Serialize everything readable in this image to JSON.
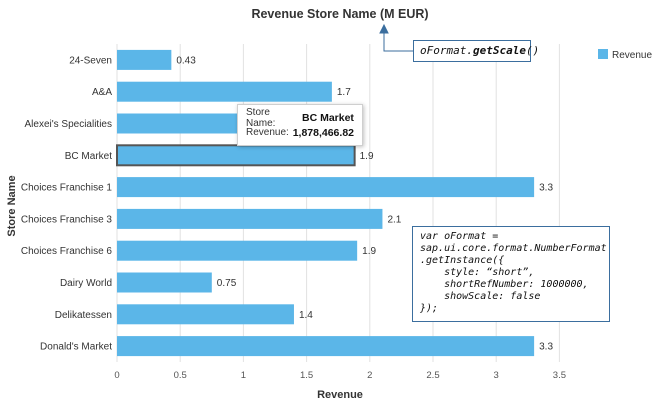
{
  "chart_data": {
    "type": "bar",
    "orientation": "horizontal",
    "title": "Revenue Store Name (M EUR)",
    "xlabel": "Revenue",
    "ylabel": "Store Name",
    "categories": [
      "24-Seven",
      "A&A",
      "Alexei's Specialities",
      "BC Market",
      "Choices Franchise 1",
      "Choices Franchise 3",
      "Choices Franchise 6",
      "Dairy World",
      "Delikatessen",
      "Donald's Market"
    ],
    "series": [
      {
        "name": "Revenue",
        "values": [
          0.43,
          1.7,
          1.6,
          1.88,
          3.3,
          2.1,
          1.9,
          0.75,
          1.4,
          3.3
        ],
        "data_labels": [
          "0.43",
          "1.7",
          "",
          "1.9",
          "3.3",
          "2.1",
          "1.9",
          "0.75",
          "1.4",
          "3.3"
        ]
      }
    ],
    "xlim": [
      0,
      3.5
    ],
    "xticks": [
      "0",
      "0.5",
      "1",
      "1.5",
      "2",
      "2.5",
      "3",
      "3.5"
    ],
    "xtick_values": [
      0,
      0.5,
      1,
      1.5,
      2,
      2.5,
      3,
      3.5
    ],
    "grid": "vertical",
    "legend": "top-right",
    "highlighted_category": "BC Market"
  },
  "colors": {
    "bar": "#5bb6e8",
    "bar_highlight_border": "#555555",
    "grid": "#e2e2e2",
    "callout_border": "#3b6e9e"
  },
  "tooltip": {
    "store_label": "Store Name:",
    "store_value": "BC Market",
    "revenue_label": "Revenue:",
    "revenue_value": "1,878,466.82"
  },
  "callouts": {
    "scale_obj": "oFormat.",
    "scale_method": "getScale",
    "scale_args": "()",
    "code_lines": [
      "var oFormat =",
      "sap.ui.core.format.NumberFormat",
      ".getInstance({",
      "    style: “short”,",
      "    shortRefNumber: 1000000,",
      "    showScale: false",
      "});"
    ]
  }
}
